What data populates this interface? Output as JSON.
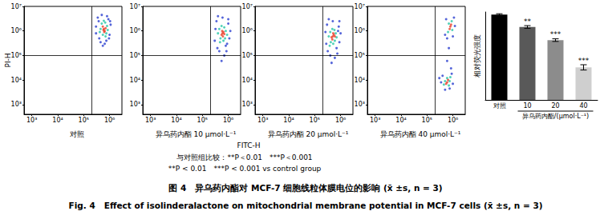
{
  "axis_titles": {
    "x": "FITC-H",
    "y": "PI-H"
  },
  "chart_data": [
    {
      "type": "scatter",
      "title": "对照",
      "log": true,
      "marker": "circle",
      "xlim": [
        500,
        3000000
      ],
      "ylim": [
        400,
        10000000
      ],
      "xticks": [
        {
          "value": 1000,
          "label": "10³"
        },
        {
          "value": 10000,
          "label": "10⁴"
        },
        {
          "value": 100000,
          "label": "10⁵"
        },
        {
          "value": 1000000,
          "label": "10⁶"
        }
      ],
      "yticks": [
        {
          "value": 1000,
          "label": "10³"
        },
        {
          "value": 10000,
          "label": "10⁴"
        },
        {
          "value": 100000,
          "label": "10⁵"
        },
        {
          "value": 1000000,
          "label": "10⁶"
        },
        {
          "value": 10000000,
          "label": "10⁷"
        }
      ],
      "gates": {
        "x": 200000,
        "y": 100000
      },
      "series": [
        {
          "color": "#2a3fd0",
          "values": [
            [
              350000,
              3500000
            ],
            [
              900000,
              3000000
            ],
            [
              1000000,
              700000
            ],
            [
              400000,
              500000
            ],
            [
              300000,
              1500000
            ],
            [
              1100000,
              1800000
            ],
            [
              500000,
              4500000
            ],
            [
              750000,
              400000
            ],
            [
              380000,
              2500000
            ],
            [
              950000,
              500000
            ],
            [
              650000,
              300000
            ],
            [
              1050000,
              2500000
            ],
            [
              450000,
              350000
            ],
            [
              300000,
              800000
            ],
            [
              800000,
              4000000
            ],
            [
              550000,
              250000
            ]
          ]
        },
        {
          "color": "#27c7a8",
          "values": [
            [
              500000,
              2000000
            ],
            [
              750000,
              800000
            ],
            [
              450000,
              1200000
            ],
            [
              800000,
              1600000
            ],
            [
              550000,
              700000
            ],
            [
              680000,
              2200000
            ],
            [
              420000,
              900000
            ],
            [
              850000,
              1100000
            ],
            [
              600000,
              2600000
            ],
            [
              700000,
              600000
            ]
          ]
        },
        {
          "color": "#e8402a",
          "values": [
            [
              600000,
              1200000
            ],
            [
              650000,
              1000000
            ],
            [
              550000,
              1500000
            ],
            [
              700000,
              1300000
            ],
            [
              620000,
              900000
            ],
            [
              580000,
              1100000
            ]
          ]
        }
      ]
    },
    {
      "type": "scatter",
      "title": "异乌药内酯 10 μmol·L⁻¹",
      "log": true,
      "marker": "circle",
      "xlim": [
        500,
        3000000
      ],
      "ylim": [
        400,
        10000000
      ],
      "xticks": [
        {
          "value": 1000,
          "label": "10³"
        },
        {
          "value": 10000,
          "label": "10⁴"
        },
        {
          "value": 100000,
          "label": "10⁵"
        },
        {
          "value": 1000000,
          "label": "10⁶"
        }
      ],
      "yticks": [
        {
          "value": 1000,
          "label": "10³"
        },
        {
          "value": 10000,
          "label": "10⁴"
        },
        {
          "value": 100000,
          "label": "10⁵"
        },
        {
          "value": 1000000,
          "label": "10⁶"
        },
        {
          "value": 10000000,
          "label": "10⁷"
        }
      ],
      "gates": {
        "x": 200000,
        "y": 100000
      },
      "series": [
        {
          "color": "#2a3fd0",
          "values": [
            [
              350000,
              2500000
            ],
            [
              1000000,
              2000000
            ],
            [
              1100000,
              500000
            ],
            [
              300000,
              400000
            ],
            [
              380000,
              200000
            ],
            [
              800000,
              250000
            ],
            [
              600000,
              3500000
            ],
            [
              1200000,
              1000000
            ],
            [
              320000,
              1200000
            ],
            [
              900000,
              300000
            ],
            [
              450000,
              150000
            ],
            [
              700000,
              100000
            ],
            [
              1000000,
              3000000
            ],
            [
              400000,
              4000000
            ],
            [
              550000,
              60000
            ],
            [
              850000,
              150000
            ]
          ]
        },
        {
          "color": "#27c7a8",
          "values": [
            [
              450000,
              1200000
            ],
            [
              800000,
              1000000
            ],
            [
              500000,
              500000
            ],
            [
              750000,
              500000
            ],
            [
              400000,
              800000
            ],
            [
              900000,
              700000
            ],
            [
              550000,
              1600000
            ],
            [
              700000,
              1400000
            ],
            [
              650000,
              400000
            ],
            [
              480000,
              350000
            ]
          ]
        },
        {
          "color": "#e8402a",
          "values": [
            [
              600000,
              800000
            ],
            [
              550000,
              700000
            ],
            [
              650000,
              900000
            ],
            [
              620000,
              600000
            ],
            [
              580000,
              1000000
            ],
            [
              700000,
              750000
            ]
          ]
        }
      ]
    },
    {
      "type": "scatter",
      "title": "异乌药内酯 20 μmol·L⁻¹",
      "log": true,
      "marker": "circle",
      "xlim": [
        500,
        3000000
      ],
      "ylim": [
        400,
        10000000
      ],
      "xticks": [
        {
          "value": 1000,
          "label": "10³"
        },
        {
          "value": 10000,
          "label": "10⁴"
        },
        {
          "value": 100000,
          "label": "10⁵"
        },
        {
          "value": 1000000,
          "label": "10⁶"
        }
      ],
      "yticks": [
        {
          "value": 1000,
          "label": "10³"
        },
        {
          "value": 10000,
          "label": "10⁴"
        },
        {
          "value": 100000,
          "label": "10⁵"
        },
        {
          "value": 1000000,
          "label": "10⁶"
        },
        {
          "value": 10000000,
          "label": "10⁷"
        }
      ],
      "gates": {
        "x": 200000,
        "y": 100000
      },
      "series": [
        {
          "color": "#2a3fd0",
          "values": [
            [
              300000,
              1800000
            ],
            [
              850000,
              1500000
            ],
            [
              900000,
              350000
            ],
            [
              280000,
              300000
            ],
            [
              320000,
              150000
            ],
            [
              700000,
              200000
            ],
            [
              500000,
              2500000
            ],
            [
              1000000,
              800000
            ],
            [
              260000,
              900000
            ],
            [
              750000,
              120000
            ],
            [
              400000,
              100000
            ],
            [
              600000,
              80000
            ],
            [
              900000,
              2500000
            ],
            [
              350000,
              3000000
            ],
            [
              450000,
              50000
            ],
            [
              800000,
              1000000
            ]
          ]
        },
        {
          "color": "#27c7a8",
          "values": [
            [
              400000,
              900000
            ],
            [
              650000,
              800000
            ],
            [
              420000,
              350000
            ],
            [
              600000,
              400000
            ],
            [
              350000,
              600000
            ],
            [
              700000,
              550000
            ],
            [
              480000,
              1200000
            ],
            [
              580000,
              1100000
            ],
            [
              520000,
              300000
            ],
            [
              380000,
              250000
            ]
          ]
        },
        {
          "color": "#e8402a",
          "values": [
            [
              500000,
              600000
            ],
            [
              450000,
              550000
            ],
            [
              550000,
              700000
            ],
            [
              480000,
              450000
            ],
            [
              520000,
              800000
            ],
            [
              600000,
              600000
            ]
          ]
        }
      ]
    },
    {
      "type": "scatter",
      "title": "异乌药内酯 40 μmol·L⁻¹",
      "log": true,
      "marker": "circle",
      "xlim": [
        500,
        3000000
      ],
      "ylim": [
        400,
        10000000
      ],
      "xticks": [
        {
          "value": 1000,
          "label": "10³"
        },
        {
          "value": 10000,
          "label": "10⁴"
        },
        {
          "value": 100000,
          "label": "10⁵"
        },
        {
          "value": 1000000,
          "label": "10⁶"
        }
      ],
      "yticks": [
        {
          "value": 1000,
          "label": "10³"
        },
        {
          "value": 10000,
          "label": "10⁴"
        },
        {
          "value": 100000,
          "label": "10⁵"
        },
        {
          "value": 1000000,
          "label": "10⁶"
        },
        {
          "value": 10000000,
          "label": "10⁷"
        }
      ],
      "gates": {
        "x": 200000,
        "y": 100000
      },
      "series": [
        {
          "color": "#2a3fd0",
          "values": [
            [
              550000,
              3000000
            ],
            [
              1200000,
              1600000
            ],
            [
              500000,
              700000
            ],
            [
              1100000,
              3500000
            ],
            [
              600000,
              500000
            ],
            [
              1000000,
              600000
            ],
            [
              400000,
              15000
            ],
            [
              900000,
              18000
            ],
            [
              350000,
              8000
            ],
            [
              1000000,
              7000
            ],
            [
              500000,
              4000
            ],
            [
              750000,
              4500
            ],
            [
              600000,
              60000
            ],
            [
              700000,
              200000
            ],
            [
              850000,
              30000
            ],
            [
              300000,
              12000
            ]
          ]
        },
        {
          "color": "#27c7a8",
          "values": [
            [
              700000,
              2000000
            ],
            [
              950000,
              1100000
            ],
            [
              650000,
              900000
            ],
            [
              900000,
              2500000
            ],
            [
              500000,
              9000
            ],
            [
              700000,
              6000
            ],
            [
              600000,
              12000
            ],
            [
              750000,
              9000
            ],
            [
              450000,
              6500
            ],
            [
              800000,
              13000
            ]
          ]
        },
        {
          "color": "#e8402a",
          "values": [
            [
              800000,
              1500000
            ],
            [
              750000,
              1200000
            ],
            [
              600000,
              8000
            ],
            [
              650000,
              10000
            ],
            [
              850000,
              1800000
            ],
            [
              550000,
              7000
            ]
          ]
        }
      ]
    },
    {
      "type": "bar",
      "xlabel": "异乌药内酯/(μmol·L⁻¹)",
      "ylabel": "相对荧光强度",
      "categories": [
        "对照",
        "10",
        "20",
        "40"
      ],
      "values": [
        97,
        83,
        68,
        37
      ],
      "errors": [
        1,
        1.5,
        1.5,
        3
      ],
      "significance": [
        null,
        "**",
        "***",
        "***"
      ],
      "colors": [
        "#000000",
        "#595959",
        "#8c8c8c",
        "#cfcfcf"
      ],
      "ylim": [
        0,
        100
      ],
      "tick_labels": "x",
      "grid": false
    }
  ],
  "notes": [
    "与对照组比较：**P＜0.01　***P＜0.001",
    "**P < 0.01　***P < 0.001 vs control group"
  ],
  "caption": [
    "图 4　异乌药内酯对 MCF-7 细胞线粒体膜电位的影响 (x̄ ±s, n = 3)",
    "Fig. 4　Effect of isolinderalactone on mitochondrial membrane potential in MCF-7 cells (x̄ ±s, n = 3)"
  ]
}
